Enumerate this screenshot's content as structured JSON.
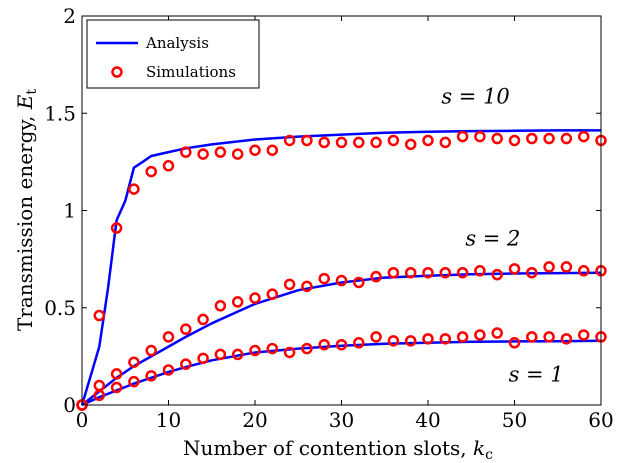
{
  "chart_data": {
    "type": "line",
    "xlabel_text": "Number of contention slots, ",
    "xlabel_var": "k",
    "xlabel_sub": "c",
    "ylabel_text": "Transmission energy, ",
    "ylabel_var": "E",
    "ylabel_sub": "t",
    "xlim": [
      0,
      60
    ],
    "ylim": [
      0,
      2
    ],
    "xticks": [
      0,
      10,
      20,
      30,
      40,
      50,
      60
    ],
    "yticks": [
      0,
      0.5,
      1,
      1.5,
      2
    ],
    "ytick_labels": [
      "0",
      "0.5",
      "1",
      "1.5",
      "2"
    ],
    "grid": false,
    "legend": {
      "placement": "top-left",
      "entries": [
        "Analysis",
        "Simulations"
      ]
    },
    "colors": {
      "analysis": "#0000ff",
      "simulations": "#ff0000"
    },
    "annotations": [
      {
        "text": "s = 10",
        "x": 45.5,
        "y": 1.55
      },
      {
        "text": "s = 2",
        "x": 47.5,
        "y": 0.82
      },
      {
        "text": "s = 1",
        "x": 52.5,
        "y": 0.12
      }
    ],
    "series": [
      {
        "name": "Analysis",
        "curve": "s = 10",
        "style": "line",
        "x": [
          0,
          1,
          2,
          3,
          4,
          5,
          6,
          7,
          8,
          10,
          12,
          15,
          20,
          25,
          30,
          35,
          40,
          45,
          50,
          55,
          60
        ],
        "y": [
          0,
          0.15,
          0.3,
          0.6,
          0.95,
          1.05,
          1.22,
          1.25,
          1.28,
          1.3,
          1.32,
          1.34,
          1.365,
          1.38,
          1.39,
          1.4,
          1.405,
          1.408,
          1.41,
          1.412,
          1.412
        ]
      },
      {
        "name": "Analysis",
        "curve": "s = 2",
        "style": "line",
        "x": [
          0,
          2,
          4,
          6,
          8,
          10,
          12,
          15,
          18,
          20,
          25,
          30,
          35,
          40,
          45,
          50,
          55,
          60
        ],
        "y": [
          0,
          0.07,
          0.14,
          0.2,
          0.25,
          0.3,
          0.35,
          0.42,
          0.48,
          0.52,
          0.59,
          0.63,
          0.655,
          0.665,
          0.672,
          0.676,
          0.678,
          0.68
        ]
      },
      {
        "name": "Analysis",
        "curve": "s = 1",
        "style": "line",
        "x": [
          0,
          2,
          4,
          6,
          8,
          10,
          12,
          15,
          20,
          25,
          30,
          35,
          40,
          45,
          50,
          55,
          60
        ],
        "y": [
          0,
          0.04,
          0.075,
          0.11,
          0.14,
          0.17,
          0.195,
          0.23,
          0.27,
          0.29,
          0.305,
          0.315,
          0.32,
          0.325,
          0.327,
          0.328,
          0.33
        ]
      },
      {
        "name": "Simulations",
        "curve": "s = 10",
        "style": "marker",
        "x": [
          0,
          2,
          4,
          6,
          8,
          10,
          12,
          14,
          16,
          18,
          20,
          22,
          24,
          26,
          28,
          30,
          32,
          34,
          36,
          38,
          40,
          42,
          44,
          46,
          48,
          50,
          52,
          54,
          56,
          58,
          60
        ],
        "y": [
          0,
          0.46,
          0.91,
          1.11,
          1.2,
          1.23,
          1.3,
          1.29,
          1.3,
          1.29,
          1.31,
          1.31,
          1.36,
          1.36,
          1.35,
          1.35,
          1.35,
          1.35,
          1.36,
          1.34,
          1.36,
          1.35,
          1.38,
          1.38,
          1.37,
          1.36,
          1.37,
          1.37,
          1.37,
          1.38,
          1.36
        ]
      },
      {
        "name": "Simulations",
        "curve": "s = 2",
        "style": "marker",
        "x": [
          0,
          2,
          4,
          6,
          8,
          10,
          12,
          14,
          16,
          18,
          20,
          22,
          24,
          26,
          28,
          30,
          32,
          34,
          36,
          38,
          40,
          42,
          44,
          46,
          48,
          50,
          52,
          54,
          56,
          58,
          60
        ],
        "y": [
          0,
          0.1,
          0.16,
          0.22,
          0.28,
          0.35,
          0.39,
          0.44,
          0.51,
          0.53,
          0.55,
          0.57,
          0.62,
          0.61,
          0.65,
          0.64,
          0.63,
          0.66,
          0.68,
          0.68,
          0.68,
          0.68,
          0.68,
          0.69,
          0.67,
          0.7,
          0.68,
          0.71,
          0.71,
          0.69,
          0.69
        ]
      },
      {
        "name": "Simulations",
        "curve": "s = 1",
        "style": "marker",
        "x": [
          0,
          2,
          4,
          6,
          8,
          10,
          12,
          14,
          16,
          18,
          20,
          22,
          24,
          26,
          28,
          30,
          32,
          34,
          36,
          38,
          40,
          42,
          44,
          46,
          48,
          50,
          52,
          54,
          56,
          58,
          60
        ],
        "y": [
          0,
          0.05,
          0.09,
          0.12,
          0.15,
          0.18,
          0.21,
          0.24,
          0.26,
          0.26,
          0.28,
          0.29,
          0.27,
          0.29,
          0.31,
          0.31,
          0.32,
          0.35,
          0.33,
          0.33,
          0.34,
          0.34,
          0.35,
          0.36,
          0.37,
          0.32,
          0.35,
          0.35,
          0.34,
          0.36,
          0.35
        ]
      }
    ]
  }
}
